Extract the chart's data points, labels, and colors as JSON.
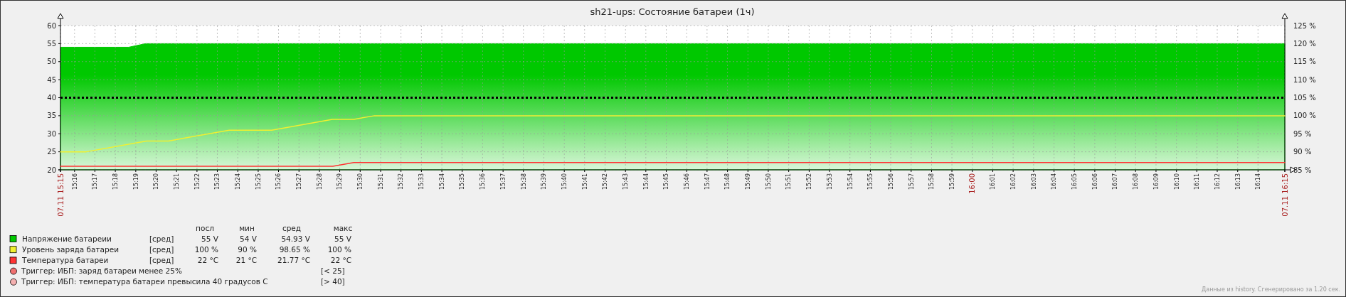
{
  "chart_data": {
    "type": "area",
    "title": "sh21-ups: Состояние батареи (1ч)",
    "xlim": [
      15.2552,
      16.2552
    ],
    "xticks": [
      {
        "value": 15.2552,
        "label": "07.11 15:15"
      },
      {
        "value": 15.2667,
        "label": "15:16"
      },
      {
        "value": 15.2833,
        "label": "15:17"
      },
      {
        "value": 15.3,
        "label": "15:18"
      },
      {
        "value": 15.3167,
        "label": "15:19"
      },
      {
        "value": 15.3333,
        "label": "15:20"
      },
      {
        "value": 15.35,
        "label": "15:21"
      },
      {
        "value": 15.3667,
        "label": "15:22"
      },
      {
        "value": 15.3833,
        "label": "15:23"
      },
      {
        "value": 15.4,
        "label": "15:24"
      },
      {
        "value": 15.4167,
        "label": "15:25"
      },
      {
        "value": 15.4333,
        "label": "15:26"
      },
      {
        "value": 15.45,
        "label": "15:27"
      },
      {
        "value": 15.4667,
        "label": "15:28"
      },
      {
        "value": 15.4833,
        "label": "15:29"
      },
      {
        "value": 15.5,
        "label": "15:30"
      },
      {
        "value": 15.5167,
        "label": "15:31"
      },
      {
        "value": 15.5333,
        "label": "15:32"
      },
      {
        "value": 15.55,
        "label": "15:33"
      },
      {
        "value": 15.5667,
        "label": "15:34"
      },
      {
        "value": 15.5833,
        "label": "15:35"
      },
      {
        "value": 15.6,
        "label": "15:36"
      },
      {
        "value": 15.6167,
        "label": "15:37"
      },
      {
        "value": 15.6333,
        "label": "15:38"
      },
      {
        "value": 15.65,
        "label": "15:39"
      },
      {
        "value": 15.6667,
        "label": "15:40"
      },
      {
        "value": 15.6833,
        "label": "15:41"
      },
      {
        "value": 15.7,
        "label": "15:42"
      },
      {
        "value": 15.7167,
        "label": "15:43"
      },
      {
        "value": 15.7333,
        "label": "15:44"
      },
      {
        "value": 15.75,
        "label": "15:45"
      },
      {
        "value": 15.7667,
        "label": "15:46"
      },
      {
        "value": 15.7833,
        "label": "15:47"
      },
      {
        "value": 15.8,
        "label": "15:48"
      },
      {
        "value": 15.8167,
        "label": "15:49"
      },
      {
        "value": 15.8333,
        "label": "15:50"
      },
      {
        "value": 15.85,
        "label": "15:51"
      },
      {
        "value": 15.8667,
        "label": "15:52"
      },
      {
        "value": 15.8833,
        "label": "15:53"
      },
      {
        "value": 15.9,
        "label": "15:54"
      },
      {
        "value": 15.9167,
        "label": "15:55"
      },
      {
        "value": 15.9333,
        "label": "15:56"
      },
      {
        "value": 15.95,
        "label": "15:57"
      },
      {
        "value": 15.9667,
        "label": "15:58"
      },
      {
        "value": 15.9833,
        "label": "15:59"
      },
      {
        "value": 16,
        "label": "16:00"
      },
      {
        "value": 16.0167,
        "label": "16:01"
      },
      {
        "value": 16.0333,
        "label": "16:02"
      },
      {
        "value": 16.05,
        "label": "16:03"
      },
      {
        "value": 16.0667,
        "label": "16:04"
      },
      {
        "value": 16.0833,
        "label": "16:05"
      },
      {
        "value": 16.1,
        "label": "16:06"
      },
      {
        "value": 16.1167,
        "label": "16:07"
      },
      {
        "value": 16.1333,
        "label": "16:08"
      },
      {
        "value": 16.15,
        "label": "16:09"
      },
      {
        "value": 16.1667,
        "label": "16:10"
      },
      {
        "value": 16.1833,
        "label": "16:11"
      },
      {
        "value": 16.2,
        "label": "16:12"
      },
      {
        "value": 16.2167,
        "label": "16:13"
      },
      {
        "value": 16.2333,
        "label": "16:14"
      },
      {
        "value": 16.2552,
        "label": "07.11 16:15"
      }
    ],
    "ylim": [
      20,
      60
    ],
    "yticks": [
      20,
      25,
      30,
      35,
      40,
      45,
      50,
      55,
      60
    ],
    "y2lim": [
      85,
      125
    ],
    "y2ticks": [
      {
        "value": 85,
        "label": "85 %"
      },
      {
        "value": 90,
        "label": "90 %"
      },
      {
        "value": 95,
        "label": "95 %"
      },
      {
        "value": 100,
        "label": "100 %"
      },
      {
        "value": 105,
        "label": "105 %"
      },
      {
        "value": 110,
        "label": "110 %"
      },
      {
        "value": 115,
        "label": "115 %"
      },
      {
        "value": 120,
        "label": "120 %"
      },
      {
        "value": 125,
        "label": "125 %"
      }
    ],
    "grid": true,
    "legend": "bottom",
    "series": [
      {
        "name": "Напряжение батареии",
        "color": "#00c800",
        "x": [
          15.2552,
          15.3109,
          15.3248,
          16.2552
        ],
        "values": [
          54,
          54,
          55,
          55
        ]
      },
      {
        "name": "Уровень заряда батареи",
        "type": "line",
        "axis": "y2",
        "color": "#f0f030",
        "x": [
          15.2552,
          15.2762,
          15.3255,
          15.3435,
          15.393,
          15.4278,
          15.4773,
          15.4948,
          15.5117,
          16.2552
        ],
        "values": [
          90,
          90,
          93,
          93,
          96,
          96,
          99,
          99,
          100,
          100
        ]
      },
      {
        "name": "Температура батареи",
        "type": "line",
        "color": "#ff3333",
        "x": [
          15.2552,
          15.4777,
          15.4948,
          16.2552
        ],
        "values": [
          21,
          21,
          22,
          22
        ]
      }
    ],
    "ref_lines": [
      {
        "axis": "y",
        "value": 40,
        "label": "Триггер: ИБП: температура батареи превысила 40 градусов С",
        "color": "#000000",
        "line_style": "dotted"
      }
    ],
    "annotations": [
      "посл",
      "мин",
      "сред",
      "макс",
      "[сред]",
      "55 V",
      "54 V",
      "54.93 V",
      "55 V",
      "[сред]",
      "100 %",
      "90 %",
      "98.65 %",
      "100 %",
      "[сред]",
      "22 °C",
      "21 °C",
      "21.77 °C",
      "22 °C",
      "Триггер: ИБП: заряд батареи менее 25%",
      "[< 25]",
      "[> 40]",
      "Данные из history. Сгенерировано за 1.20 сек."
    ]
  }
}
